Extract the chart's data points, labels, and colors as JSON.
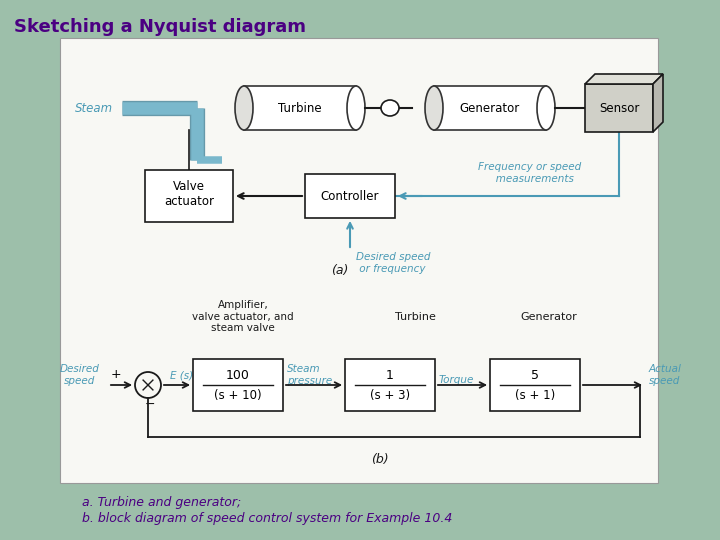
{
  "title": "Sketching a Nyquist diagram",
  "title_color": "#4B0082",
  "title_fontsize": 13,
  "bg_color": "#9dbfaa",
  "panel_bg": "#f8f8f4",
  "caption_line1": "a. Turbine and generator;",
  "caption_line2": "b. block diagram of speed control system for Example 10.4",
  "caption_color": "#4B0082",
  "teal": "#4a9ab5",
  "black": "#1a1a1a",
  "pipe_color": "#7ab8cc",
  "sensor_face": "#c8c8c0",
  "sensor_top": "#d8d8d0",
  "sensor_right": "#b0b0a8"
}
